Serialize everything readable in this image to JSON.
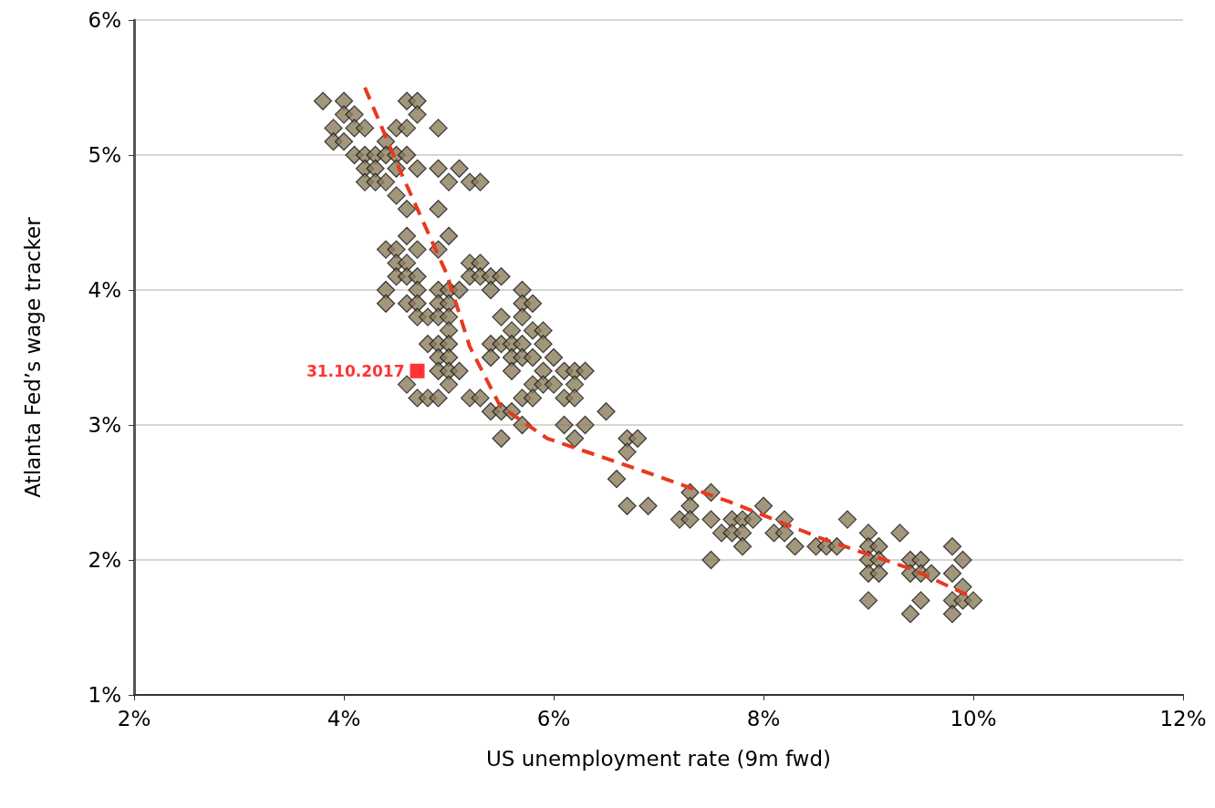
{
  "chart_data": {
    "type": "scatter",
    "xlabel": "US unemployment rate (9m fwd)",
    "ylabel": "Atlanta Fed’s wage tracker",
    "xlim": [
      2,
      12
    ],
    "xticks": [
      {
        "value": 2,
        "label": "2%"
      },
      {
        "value": 4,
        "label": "4%"
      },
      {
        "value": 6,
        "label": "6%"
      },
      {
        "value": 8,
        "label": "8%"
      },
      {
        "value": 10,
        "label": "10%"
      },
      {
        "value": 12,
        "label": "12%"
      }
    ],
    "ylim": [
      1,
      6
    ],
    "yticks": [
      {
        "value": 1,
        "label": "1%"
      },
      {
        "value": 2,
        "label": "2%"
      },
      {
        "value": 3,
        "label": "3%"
      },
      {
        "value": 4,
        "label": "4%"
      },
      {
        "value": 5,
        "label": "5%"
      },
      {
        "value": 6,
        "label": "6%"
      }
    ],
    "grid": "y",
    "series": [
      {
        "marker": "diamond",
        "color": "#8b7d5b",
        "x": [
          3.8,
          4.0,
          3.9,
          3.9,
          4.0,
          4.0,
          4.1,
          4.1,
          4.1,
          4.2,
          4.2,
          4.2,
          4.2,
          4.3,
          4.3,
          4.3,
          4.4,
          4.4,
          4.4,
          4.5,
          4.5,
          4.5,
          4.5,
          4.6,
          4.6,
          4.6,
          4.6,
          4.7,
          4.7,
          4.7,
          4.9,
          4.9,
          5.0,
          5.1,
          5.2,
          5.3,
          4.9,
          4.6,
          4.9,
          5.0,
          4.4,
          4.5,
          4.4,
          4.4,
          4.5,
          4.5,
          4.6,
          4.6,
          4.6,
          4.7,
          4.7,
          4.7,
          4.7,
          4.7,
          4.8,
          4.9,
          4.9,
          4.9,
          5.0,
          5.0,
          5.0,
          5.0,
          5.1,
          4.8,
          4.9,
          4.9,
          4.9,
          5.0,
          5.0,
          5.0,
          5.0,
          5.1,
          4.6,
          4.7,
          4.8,
          4.9,
          5.2,
          5.2,
          5.3,
          5.3,
          5.4,
          5.4,
          5.5,
          5.2,
          5.3,
          5.4,
          5.4,
          5.4,
          5.5,
          5.5,
          5.5,
          5.5,
          5.6,
          5.6,
          5.6,
          5.6,
          5.6,
          5.7,
          5.7,
          5.7,
          5.7,
          5.7,
          5.7,
          5.7,
          5.8,
          5.8,
          5.8,
          5.8,
          5.8,
          5.9,
          5.9,
          5.9,
          5.9,
          6.0,
          6.0,
          6.1,
          6.1,
          6.1,
          6.2,
          6.2,
          6.2,
          6.2,
          6.3,
          6.3,
          6.5,
          6.6,
          6.7,
          6.7,
          6.7,
          6.8,
          6.9,
          7.2,
          7.3,
          7.3,
          7.3,
          7.5,
          7.5,
          7.5,
          7.6,
          7.7,
          7.7,
          7.8,
          7.8,
          7.8,
          7.9,
          8.0,
          8.1,
          8.2,
          8.2,
          8.3,
          8.5,
          8.6,
          8.7,
          8.8,
          9.0,
          9.0,
          9.0,
          9.0,
          9.0,
          9.1,
          9.1,
          9.1,
          9.3,
          9.4,
          9.4,
          9.4,
          9.5,
          9.5,
          9.5,
          9.6,
          9.8,
          9.8,
          9.8,
          9.8,
          9.9,
          9.9,
          9.9,
          10.0
        ],
        "values": [
          5.4,
          5.4,
          5.2,
          5.1,
          5.3,
          5.1,
          5.3,
          5.2,
          5.0,
          5.2,
          5.0,
          4.9,
          4.8,
          5.0,
          4.9,
          4.8,
          5.1,
          5.0,
          4.8,
          5.2,
          5.0,
          4.9,
          4.7,
          5.4,
          5.2,
          5.0,
          4.6,
          5.4,
          5.3,
          4.9,
          5.2,
          4.9,
          4.8,
          4.9,
          4.8,
          4.8,
          4.6,
          4.4,
          4.3,
          4.4,
          4.3,
          4.3,
          4.0,
          3.9,
          4.2,
          4.1,
          4.2,
          4.1,
          3.9,
          4.3,
          4.1,
          4.0,
          3.9,
          3.8,
          3.8,
          4.0,
          3.9,
          3.8,
          4.0,
          3.9,
          3.8,
          3.7,
          4.0,
          3.6,
          3.6,
          3.5,
          3.4,
          3.6,
          3.5,
          3.4,
          3.3,
          3.4,
          3.3,
          3.2,
          3.2,
          3.2,
          4.2,
          4.1,
          4.2,
          4.1,
          4.1,
          4.0,
          4.1,
          3.2,
          3.2,
          3.6,
          3.5,
          3.1,
          3.8,
          3.6,
          3.1,
          2.9,
          3.7,
          3.6,
          3.5,
          3.4,
          3.1,
          4.0,
          3.9,
          3.8,
          3.6,
          3.5,
          3.2,
          3.0,
          3.9,
          3.7,
          3.5,
          3.3,
          3.2,
          3.7,
          3.6,
          3.4,
          3.3,
          3.5,
          3.3,
          3.4,
          3.2,
          3.0,
          3.4,
          3.3,
          3.2,
          2.9,
          3.4,
          3.0,
          3.1,
          2.6,
          2.9,
          2.8,
          2.4,
          2.9,
          2.4,
          2.3,
          2.5,
          2.4,
          2.3,
          2.5,
          2.3,
          2.0,
          2.2,
          2.3,
          2.2,
          2.3,
          2.2,
          2.1,
          2.3,
          2.4,
          2.2,
          2.3,
          2.2,
          2.1,
          2.1,
          2.1,
          2.1,
          2.3,
          2.2,
          2.1,
          2.0,
          1.9,
          1.7,
          2.1,
          2.0,
          1.9,
          2.2,
          2.0,
          1.9,
          1.6,
          2.0,
          1.9,
          1.7,
          1.9,
          2.1,
          1.9,
          1.7,
          1.6,
          2.0,
          1.8,
          1.7,
          1.7
        ]
      },
      {
        "type": "line",
        "line_style": "dashed",
        "marker": "none",
        "color": "#e8391f",
        "x": [
          4.2,
          4.55,
          4.98,
          5.2,
          5.49,
          5.94,
          6.81,
          7.68,
          8.55,
          9.42,
          10.0
        ],
        "values": [
          5.5,
          4.86,
          4.12,
          3.58,
          3.14,
          2.9,
          2.67,
          2.43,
          2.16,
          1.93,
          1.72
        ]
      },
      {
        "type": "scatter",
        "marker": "square",
        "color": "#ff0000",
        "x": [
          4.7
        ],
        "values": [
          3.4
        ]
      }
    ],
    "annotations": [
      {
        "text": "31.10.2017",
        "x": 4.7,
        "y": 3.4
      }
    ]
  }
}
